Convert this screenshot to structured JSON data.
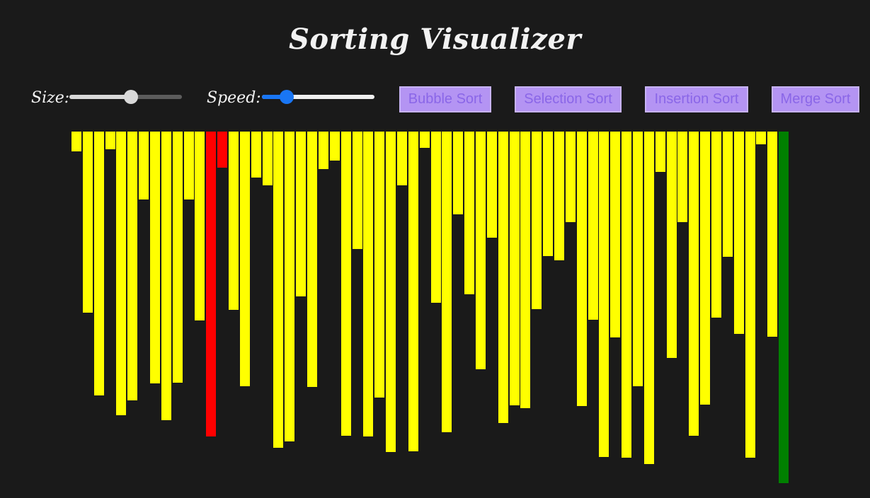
{
  "app": {
    "title": "Sorting Visualizer"
  },
  "controls": {
    "size_label": "Size:",
    "speed_label": "Speed:",
    "size_level": 0.55,
    "speed_level": 0.22
  },
  "buttons": {
    "bubble_sort": "Bubble Sort",
    "selection_sort": "Selection Sort",
    "insertion_sort": "Insertion Sort",
    "merge_sort": "Merge Sort"
  },
  "colors": {
    "background": "#1a1a1a",
    "bar_default": "#ffff00",
    "bar_compare": "#ff0000",
    "bar_sorted": "#008000",
    "button_bg": "#b494f3",
    "button_text": "#8a66e8"
  },
  "array": {
    "values": [
      28,
      256,
      373,
      25,
      401,
      380,
      96,
      356,
      408,
      355,
      96,
      267,
      431,
      51,
      252,
      360,
      65,
      76,
      447,
      438,
      233,
      361,
      53,
      41,
      430,
      166,
      431,
      376,
      453,
      76,
      452,
      23,
      242,
      425,
      117,
      230,
      336,
      150,
      412,
      387,
      391,
      251,
      176,
      182,
      128,
      388,
      266,
      460,
      291,
      461,
      360,
      470,
      57,
      320,
      128,
      430,
      386,
      263,
      177,
      286,
      461,
      18,
      290,
      497
    ],
    "states": [
      "default",
      "default",
      "default",
      "default",
      "default",
      "default",
      "default",
      "default",
      "default",
      "default",
      "default",
      "default",
      "compare",
      "compare",
      "default",
      "default",
      "default",
      "default",
      "default",
      "default",
      "default",
      "default",
      "default",
      "default",
      "default",
      "default",
      "default",
      "default",
      "default",
      "default",
      "default",
      "default",
      "default",
      "default",
      "default",
      "default",
      "default",
      "default",
      "default",
      "default",
      "default",
      "default",
      "default",
      "default",
      "default",
      "default",
      "default",
      "default",
      "default",
      "default",
      "default",
      "default",
      "default",
      "default",
      "default",
      "default",
      "default",
      "default",
      "default",
      "default",
      "default",
      "default",
      "default",
      "sorted"
    ]
  }
}
